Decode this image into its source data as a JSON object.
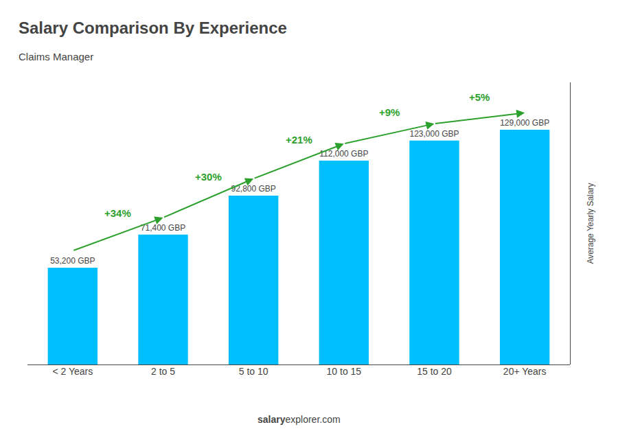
{
  "chart_data": {
    "type": "bar",
    "title": "Salary Comparison By Experience",
    "subtitle": "Claims Manager",
    "ylabel": "Average Yearly Salary",
    "categories": [
      "< 2 Years",
      "2 to 5",
      "5 to 10",
      "10 to 15",
      "15 to 20",
      "20+ Years"
    ],
    "values": [
      53200,
      71400,
      92800,
      112000,
      123000,
      129000
    ],
    "value_labels": [
      "53,200 GBP",
      "71,400 GBP",
      "92,800 GBP",
      "112,000 GBP",
      "123,000 GBP",
      "129,000 GBP"
    ],
    "data_labels": true,
    "change_labels": [
      null,
      "+34%",
      "+30%",
      "+21%",
      "+9%",
      "+5%"
    ],
    "annotations": [
      "salary",
      "explorer.com"
    ],
    "color": "#00bfff",
    "ylim": [
      0,
      155000
    ],
    "grid": false,
    "tick_labels": "x"
  }
}
